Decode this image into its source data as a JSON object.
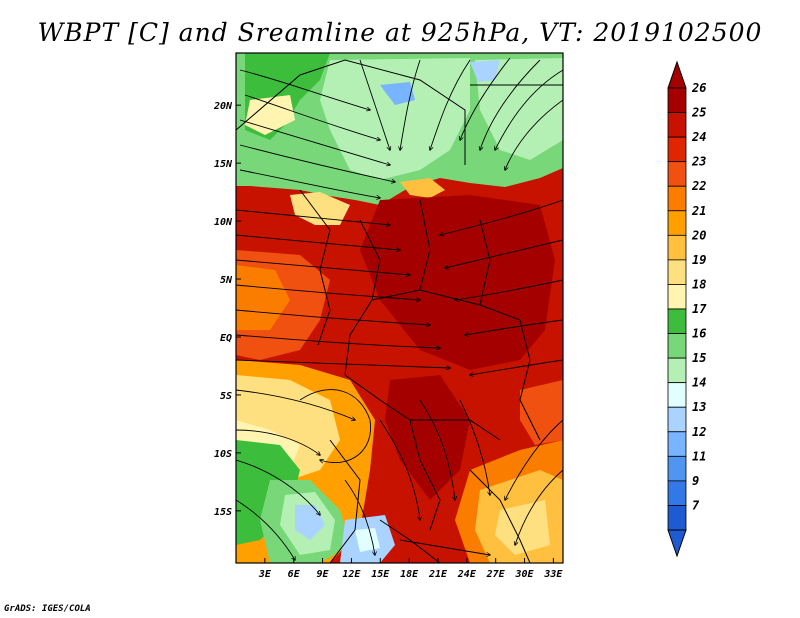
{
  "title": "WBPT [C] and Sreamline at 925hPa, VT: 2019102500",
  "credit": "GrADS: IGES/COLA",
  "map": {
    "lat_range": [
      -19.5,
      24.5
    ],
    "lon_range": [
      0,
      34
    ],
    "lat_ticks": [
      {
        "lat": 20,
        "label": "20N"
      },
      {
        "lat": 15,
        "label": "15N"
      },
      {
        "lat": 10,
        "label": "10N"
      },
      {
        "lat": 5,
        "label": "5N"
      },
      {
        "lat": 0,
        "label": "EQ"
      },
      {
        "lat": -5,
        "label": "5S"
      },
      {
        "lat": -10,
        "label": "10S"
      },
      {
        "lat": -15,
        "label": "15S"
      }
    ],
    "lon_ticks": [
      {
        "lon": 3,
        "label": "3E"
      },
      {
        "lon": 6,
        "label": "6E"
      },
      {
        "lon": 9,
        "label": "9E"
      },
      {
        "lon": 12,
        "label": "12E"
      },
      {
        "lon": 15,
        "label": "15E"
      },
      {
        "lon": 18,
        "label": "18E"
      },
      {
        "lon": 21,
        "label": "21E"
      },
      {
        "lon": 24,
        "label": "24E"
      },
      {
        "lon": 27,
        "label": "27E"
      },
      {
        "lon": 30,
        "label": "30E"
      },
      {
        "lon": 33,
        "label": "33E"
      }
    ]
  },
  "colorbar": {
    "levels": [
      {
        "label": "26",
        "color": "#a50000"
      },
      {
        "label": "25",
        "color": "#c81200"
      },
      {
        "label": "24",
        "color": "#e02600"
      },
      {
        "label": "23",
        "color": "#f05010"
      },
      {
        "label": "22",
        "color": "#fa7d00"
      },
      {
        "label": "21",
        "color": "#ffa000"
      },
      {
        "label": "20",
        "color": "#ffc040"
      },
      {
        "label": "19",
        "color": "#ffe080"
      },
      {
        "label": "18",
        "color": "#fff5b0"
      },
      {
        "label": "17",
        "color": "#3cbe3c"
      },
      {
        "label": "16",
        "color": "#78d778"
      },
      {
        "label": "15",
        "color": "#b4f0b4"
      },
      {
        "label": "14",
        "color": "#e1ffff"
      },
      {
        "label": "13",
        "color": "#aad4ff"
      },
      {
        "label": "12",
        "color": "#78b4ff"
      },
      {
        "label": "11",
        "color": "#5096f0"
      },
      {
        "label": "9",
        "color": "#3278e6"
      },
      {
        "label": "7",
        "color": "#1e5ad2"
      }
    ],
    "top_color": "#a50000",
    "bottom_color": "#1e5ad2"
  }
}
